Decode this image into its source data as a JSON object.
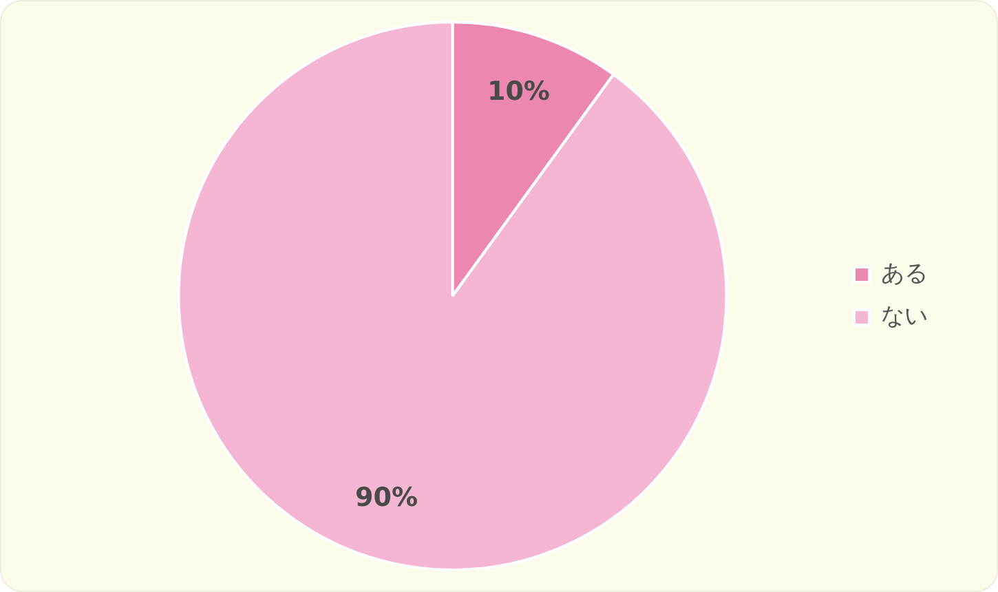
{
  "chart_data": {
    "type": "pie",
    "categories": [
      "ある",
      "ない"
    ],
    "values": [
      10,
      90
    ],
    "colors": [
      "#ec87b0",
      "#f4b6d2"
    ],
    "legend": "right",
    "value_labels": [
      "10%",
      "90%"
    ]
  }
}
